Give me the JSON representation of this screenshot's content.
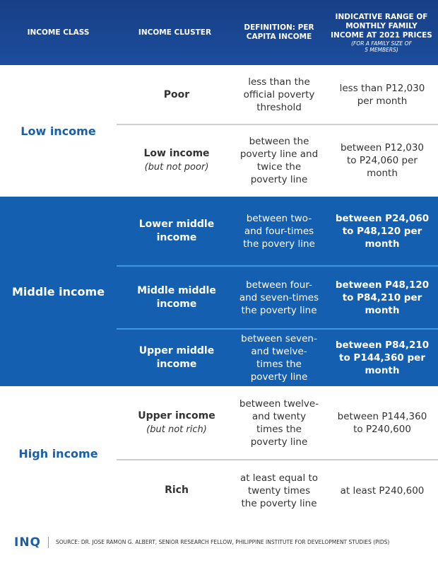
{
  "header": {
    "columns": [
      "INCOME CLASS",
      "INCOME CLUSTER",
      "DEFINITION: PER CAPITA INCOME",
      "INDICATIVE RANGE OF MONTHLY FAMILY INCOME AT 2021 PRICES"
    ],
    "note": "(FOR A FAMILY SIZE OF 5 MEMBERS)"
  },
  "groups": [
    {
      "label": "Low income",
      "rows": [
        {
          "cluster": "Poor",
          "definition": "less than the official poverty threshold",
          "range": "less than P12,030 per month"
        },
        {
          "cluster": "Low income",
          "cluster_note": "(but not poor)",
          "definition": "between the poverty line and twice the poverty line",
          "range": "between P12,030 to P24,060 per month"
        }
      ]
    },
    {
      "label": "Middle income",
      "rows": [
        {
          "cluster": "Lower middle income",
          "definition": "between two-and four-times the povery line",
          "range": "between P24,060 to P48,120 per month"
        },
        {
          "cluster": "Middle middle income",
          "definition": "between four- and seven-times the poverty line",
          "range": "between P48,120 to P84,210 per month"
        },
        {
          "cluster": "Upper middle income",
          "definition": "between seven- and twelve-times the poverty line",
          "range": "between P84,210 to P144,360 per month"
        }
      ]
    },
    {
      "label": "High income",
      "rows": [
        {
          "cluster": "Upper income",
          "cluster_note": "(but not rich)",
          "definition": "between twelve- and twenty times the poverty line",
          "range": "between P144,360 to P240,600"
        },
        {
          "cluster": "Rich",
          "definition": "at least equal to twenty times the poverty line",
          "range": "at least P240,600"
        }
      ]
    }
  ],
  "footer": {
    "logo": "INQ",
    "source": "SOURCE: DR. JOSE RAMON G. ALBERT, SENIOR RESEARCH FELLOW, PHILIPPINE INSTITUTE FOR DEVELOPMENT STUDIES (PIDS)"
  }
}
